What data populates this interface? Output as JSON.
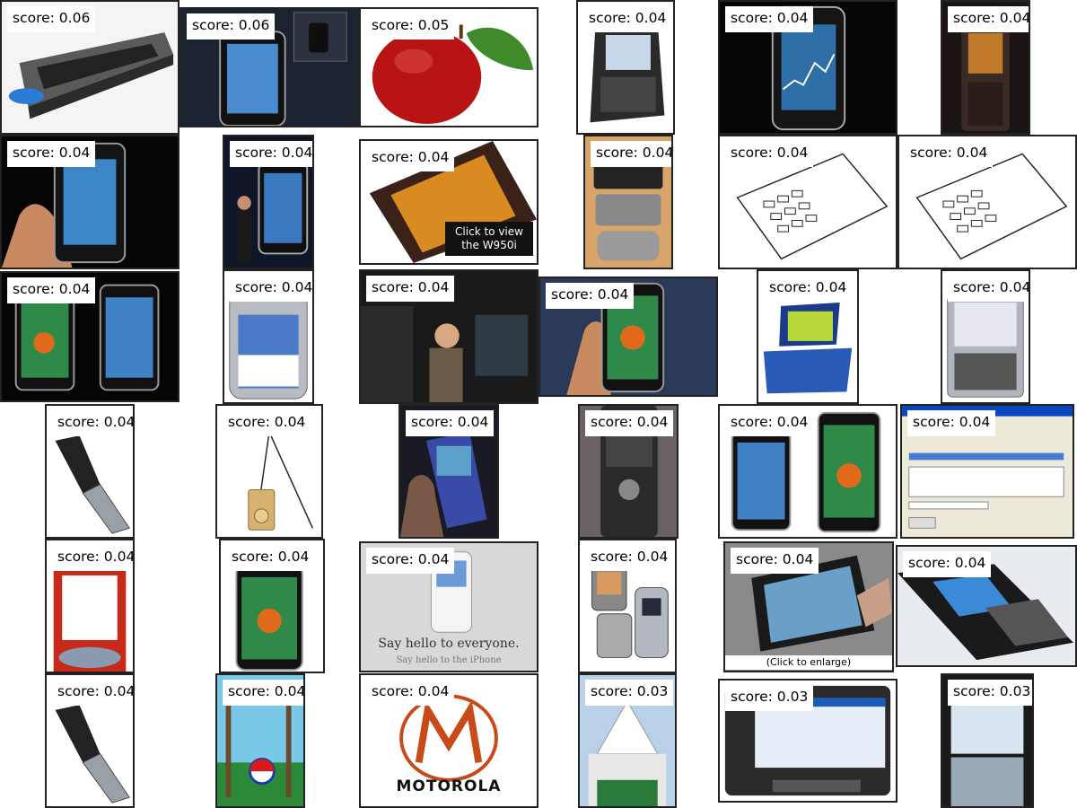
{
  "tiles": [
    {
      "score": "score: 0.06",
      "subject": "keyboard"
    },
    {
      "score": "score: 0.06",
      "subject": "iphone"
    },
    {
      "score": "score: 0.05",
      "subject": "apple"
    },
    {
      "score": "score: 0.04",
      "subject": "blackberry"
    },
    {
      "score": "score: 0.04",
      "subject": "iphone"
    },
    {
      "score": "score: 0.04",
      "subject": "walkman-phone"
    },
    {
      "score": "score: 0.04",
      "subject": "iphone-hand"
    },
    {
      "score": "score: 0.04",
      "subject": "keynote"
    },
    {
      "score": "score: 0.04",
      "subject": "w950i",
      "caption": "Click to view the W950i"
    },
    {
      "score": "score: 0.04",
      "subject": "devices"
    },
    {
      "score": "score: 0.04",
      "subject": "patent-drawing"
    },
    {
      "score": "score: 0.04",
      "subject": "patent-drawing"
    },
    {
      "score": "score: 0.04",
      "subject": "two-iphones"
    },
    {
      "score": "score: 0.04",
      "subject": "motorola-phone"
    },
    {
      "score": "score: 0.04",
      "subject": "person"
    },
    {
      "score": "score: 0.04",
      "subject": "iphone-hand"
    },
    {
      "score": "score: 0.04",
      "subject": "vbox"
    },
    {
      "score": "score: 0.04",
      "subject": "nokia-e61"
    },
    {
      "score": "score: 0.04",
      "subject": "flip-phone"
    },
    {
      "score": "score: 0.04",
      "subject": "ipod-lanyard"
    },
    {
      "score": "score: 0.04",
      "subject": "phone-in-hand"
    },
    {
      "score": "score: 0.04",
      "subject": "sony-phone"
    },
    {
      "score": "score: 0.04",
      "subject": "two-iphones"
    },
    {
      "score": "score: 0.04",
      "subject": "software-window"
    },
    {
      "score": "score: 0.04",
      "subject": "nokia-red"
    },
    {
      "score": "score: 0.04",
      "subject": "iphone"
    },
    {
      "score": "score: 0.04",
      "subject": "white-phone",
      "caption": "Say hello to everyone.",
      "caption2": "Say hello to the iPhone"
    },
    {
      "score": "score: 0.04",
      "subject": "razr-pair"
    },
    {
      "score": "score: 0.04",
      "subject": "stylus",
      "caption": "(Click to enlarge)"
    },
    {
      "score": "score: 0.04",
      "subject": "nokia-swivel"
    },
    {
      "score": "score: 0.04",
      "subject": "flip-phone"
    },
    {
      "score": "score: 0.04",
      "subject": "pepsi-ad"
    },
    {
      "score": "score: 0.04",
      "subject": "motorola-logo",
      "caption": "MOTOROLA"
    },
    {
      "score": "score: 0.03",
      "subject": "tent"
    },
    {
      "score": "score: 0.03",
      "subject": "internet-tablet"
    },
    {
      "score": "score: 0.03",
      "subject": "iphone-keyboard"
    }
  ]
}
